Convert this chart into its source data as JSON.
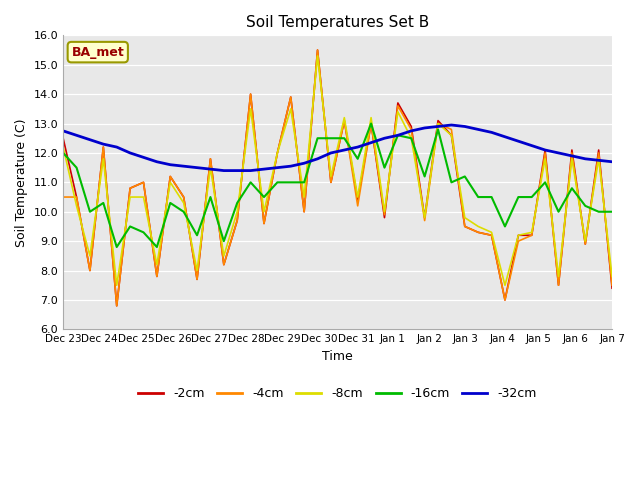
{
  "title": "Soil Temperatures Set B",
  "xlabel": "Time",
  "ylabel": "Soil Temperature (C)",
  "ylim": [
    6.0,
    16.0
  ],
  "yticks": [
    6.0,
    7.0,
    8.0,
    9.0,
    10.0,
    11.0,
    12.0,
    13.0,
    14.0,
    15.0,
    16.0
  ],
  "legend_labels": [
    "-2cm",
    "-4cm",
    "-8cm",
    "-16cm",
    "-32cm"
  ],
  "annotation_text": "BA_met",
  "annotation_color": "#990000",
  "annotation_bg": "#ffffcc",
  "annotation_edge": "#999900",
  "bg_color": "#e8e8e8",
  "x_labels": [
    "Dec 23",
    "Dec 24",
    "Dec 25",
    "Dec 26",
    "Dec 27",
    "Dec 28",
    "Dec 29",
    "Dec 30",
    "Dec 31",
    "Jan 1",
    "Jan 2",
    "Jan 3",
    "Jan 4",
    "Jan 5",
    "Jan 6",
    "Jan 7"
  ],
  "line_colors": [
    "#cc0000",
    "#ff8800",
    "#dddd00",
    "#00bb00",
    "#0000cc"
  ],
  "line_widths": [
    1.2,
    1.2,
    1.2,
    1.5,
    2.0
  ],
  "data_2cm": [
    12.5,
    10.5,
    8.0,
    12.2,
    6.8,
    10.8,
    11.0,
    7.8,
    11.2,
    10.5,
    7.7,
    11.8,
    8.2,
    9.7,
    14.0,
    9.6,
    12.0,
    13.9,
    10.0,
    15.5,
    11.0,
    13.1,
    10.4,
    13.0,
    9.8,
    13.7,
    12.9,
    9.8,
    13.1,
    12.6,
    9.5,
    9.3,
    9.2,
    7.0,
    9.2,
    9.2,
    12.1,
    7.5,
    12.1,
    8.9,
    12.1,
    7.4
  ],
  "data_4cm": [
    10.5,
    10.5,
    8.0,
    12.2,
    6.8,
    10.8,
    11.0,
    7.8,
    11.2,
    10.5,
    7.7,
    11.8,
    8.2,
    9.7,
    14.0,
    9.6,
    12.0,
    13.9,
    10.0,
    15.5,
    11.0,
    13.1,
    10.2,
    13.0,
    9.9,
    13.6,
    12.8,
    9.7,
    13.0,
    12.8,
    9.5,
    9.3,
    9.2,
    7.0,
    9.0,
    9.2,
    12.0,
    7.5,
    12.0,
    8.9,
    12.0,
    7.5
  ],
  "data_8cm": [
    12.2,
    10.2,
    8.5,
    11.8,
    7.5,
    10.5,
    10.5,
    8.2,
    11.0,
    10.3,
    8.0,
    11.5,
    8.5,
    10.0,
    13.5,
    10.0,
    12.0,
    13.5,
    10.5,
    15.3,
    11.2,
    13.2,
    10.5,
    13.2,
    10.0,
    13.4,
    12.5,
    9.8,
    13.0,
    12.6,
    9.8,
    9.5,
    9.3,
    7.5,
    9.2,
    9.3,
    11.8,
    7.8,
    11.8,
    9.0,
    11.8,
    7.8
  ],
  "data_16cm": [
    12.0,
    11.5,
    10.0,
    10.3,
    8.8,
    9.5,
    9.3,
    8.8,
    10.3,
    10.0,
    9.2,
    10.5,
    9.0,
    10.3,
    11.0,
    10.5,
    11.0,
    11.0,
    11.0,
    12.5,
    12.5,
    12.5,
    11.8,
    13.0,
    11.5,
    12.6,
    12.5,
    11.2,
    12.8,
    11.0,
    11.2,
    10.5,
    10.5,
    9.5,
    10.5,
    10.5,
    11.0,
    10.0,
    10.8,
    10.2,
    10.0,
    10.0
  ],
  "data_32cm": [
    12.75,
    12.6,
    12.45,
    12.3,
    12.2,
    12.0,
    11.85,
    11.7,
    11.6,
    11.55,
    11.5,
    11.45,
    11.4,
    11.4,
    11.4,
    11.45,
    11.5,
    11.55,
    11.65,
    11.8,
    12.0,
    12.1,
    12.2,
    12.35,
    12.5,
    12.6,
    12.75,
    12.85,
    12.9,
    12.95,
    12.9,
    12.8,
    12.7,
    12.55,
    12.4,
    12.25,
    12.1,
    12.0,
    11.9,
    11.8,
    11.75,
    11.7
  ]
}
